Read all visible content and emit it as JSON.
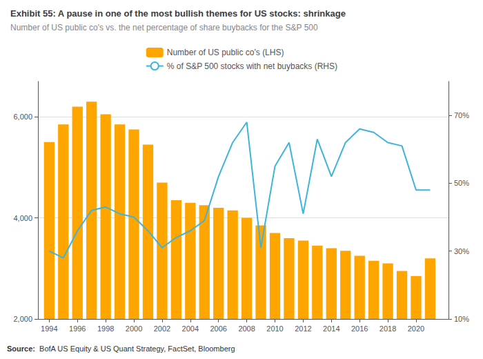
{
  "chart_data": {
    "type": "bar",
    "title": "Exhibit 55: A pause in one of the most bullish themes for US stocks: shrinkage",
    "subtitle": "Number of US public co's vs. the net percentage of share buybacks for the S&P 500",
    "annotations": [
      "Source:",
      "  BofA US Equity & US Quant Strategy, FactSet, Bloomberg"
    ],
    "x": [
      1994,
      1995,
      1996,
      1997,
      1998,
      1999,
      2000,
      2001,
      2002,
      2003,
      2004,
      2005,
      2006,
      2007,
      2008,
      2009,
      2010,
      2011,
      2012,
      2013,
      2014,
      2015,
      2016,
      2017,
      2018,
      2019,
      2020,
      2021
    ],
    "series": [
      {
        "name": "Number of US public co's (LHS)",
        "type": "bar",
        "color": "#FFA500",
        "values": [
          5500,
          5850,
          6200,
          6300,
          6050,
          5850,
          5750,
          5450,
          4700,
          4350,
          4300,
          4250,
          4200,
          4150,
          4000,
          3850,
          3700,
          3600,
          3550,
          3450,
          3400,
          3350,
          3250,
          3150,
          3100,
          2950,
          2850,
          3200
        ]
      },
      {
        "name": "% of S&P 500 stocks with net buybacks (RHS)",
        "type": "line",
        "color": "#3CB4DC",
        "axis": "y2",
        "values": [
          30,
          28,
          36,
          42,
          43,
          41,
          40,
          36,
          31,
          34,
          36,
          39,
          52,
          62,
          68,
          31,
          55,
          62,
          41,
          63,
          52,
          62,
          66,
          65,
          62,
          61,
          48,
          48
        ]
      }
    ],
    "xlim": [
      1993.2,
      2022.3
    ],
    "xticks": [
      1994,
      1996,
      1998,
      2000,
      2002,
      2004,
      2006,
      2008,
      2010,
      2012,
      2014,
      2016,
      2018,
      2020
    ],
    "ylim": [
      2000,
      6700
    ],
    "yticks": [
      {
        "value": 2000,
        "label": "2,000"
      },
      {
        "value": 4000,
        "label": "4,000"
      },
      {
        "value": 6000,
        "label": "6,000"
      }
    ],
    "y2lim": [
      10,
      80
    ],
    "y2ticks": [
      {
        "value": 10,
        "label": "10%"
      },
      {
        "value": 30,
        "label": "30%"
      },
      {
        "value": 50,
        "label": "50%"
      },
      {
        "value": 70,
        "label": "70%"
      }
    ],
    "grid": true,
    "legend": "top"
  }
}
